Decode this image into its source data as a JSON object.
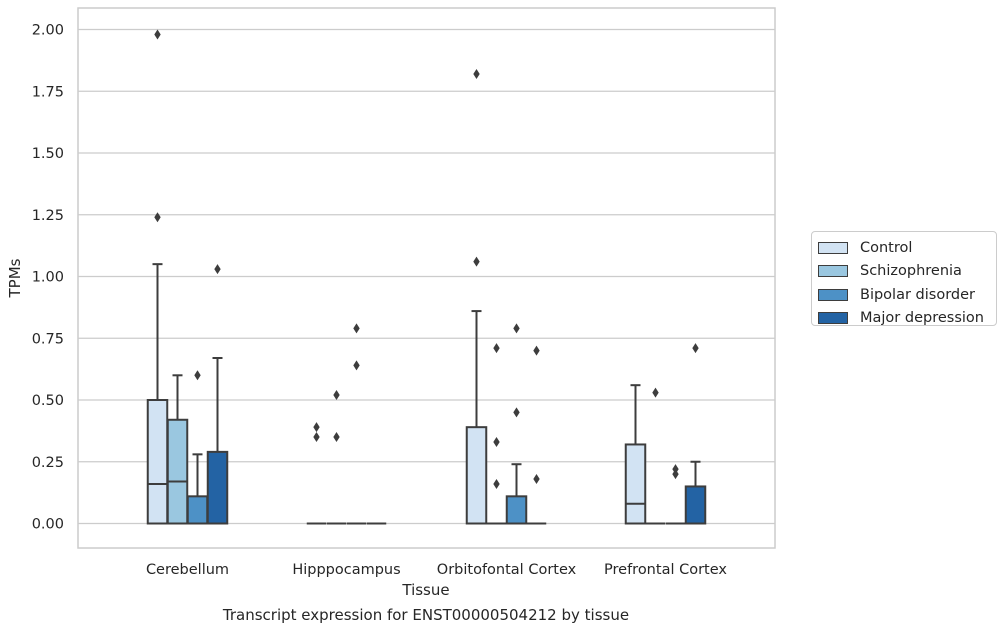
{
  "chart_data": {
    "type": "box",
    "xlabel": "Tissue",
    "ylabel": "TPMs",
    "ylim": [
      -0.1,
      2.08
    ],
    "yticks": [
      "0.00",
      "0.25",
      "0.50",
      "0.75",
      "1.00",
      "1.25",
      "1.50",
      "1.75",
      "2.00"
    ],
    "categories": [
      "Cerebellum",
      "Hipppocampus",
      "Orbitofontal Cortex",
      "Prefrontal Cortex"
    ],
    "grid": "horizontal",
    "legend_position": "right",
    "series": [
      {
        "name": "Control",
        "color": "#d2e3f3",
        "boxes": [
          {
            "q1": 0.0,
            "median": 0.16,
            "q3": 0.5,
            "whisker_low": 0.0,
            "whisker_high": 1.05,
            "outliers": [
              1.98,
              1.24
            ]
          },
          {
            "q1": 0.0,
            "median": 0.0,
            "q3": 0.0,
            "whisker_low": 0.0,
            "whisker_high": 0.0,
            "outliers": [
              0.39,
              0.35
            ]
          },
          {
            "q1": 0.0,
            "median": 0.0,
            "q3": 0.39,
            "whisker_low": 0.0,
            "whisker_high": 0.86,
            "outliers": [
              1.82,
              1.06
            ]
          },
          {
            "q1": 0.0,
            "median": 0.08,
            "q3": 0.32,
            "whisker_low": 0.0,
            "whisker_high": 0.56,
            "outliers": []
          }
        ]
      },
      {
        "name": "Schizophrenia",
        "color": "#9ac7e0",
        "boxes": [
          {
            "q1": 0.0,
            "median": 0.17,
            "q3": 0.42,
            "whisker_low": 0.0,
            "whisker_high": 0.6,
            "outliers": []
          },
          {
            "q1": 0.0,
            "median": 0.0,
            "q3": 0.0,
            "whisker_low": 0.0,
            "whisker_high": 0.0,
            "outliers": [
              0.52,
              0.35
            ]
          },
          {
            "q1": 0.0,
            "median": 0.0,
            "q3": 0.0,
            "whisker_low": 0.0,
            "whisker_high": 0.0,
            "outliers": [
              0.71,
              0.33,
              0.16
            ]
          },
          {
            "q1": 0.0,
            "median": 0.0,
            "q3": 0.0,
            "whisker_low": 0.0,
            "whisker_high": 0.0,
            "outliers": [
              0.53
            ]
          }
        ]
      },
      {
        "name": "Bipolar disorder",
        "color": "#4d91c6",
        "boxes": [
          {
            "q1": 0.0,
            "median": 0.0,
            "q3": 0.11,
            "whisker_low": 0.0,
            "whisker_high": 0.28,
            "outliers": [
              0.6
            ]
          },
          {
            "q1": 0.0,
            "median": 0.0,
            "q3": 0.0,
            "whisker_low": 0.0,
            "whisker_high": 0.0,
            "outliers": [
              0.64,
              0.79
            ]
          },
          {
            "q1": 0.0,
            "median": 0.0,
            "q3": 0.11,
            "whisker_low": 0.0,
            "whisker_high": 0.24,
            "outliers": [
              0.79,
              0.45
            ]
          },
          {
            "q1": 0.0,
            "median": 0.0,
            "q3": 0.0,
            "whisker_low": 0.0,
            "whisker_high": 0.0,
            "outliers": [
              0.22,
              0.2
            ]
          }
        ]
      },
      {
        "name": "Major depression",
        "color": "#2363a4",
        "boxes": [
          {
            "q1": 0.0,
            "median": 0.0,
            "q3": 0.29,
            "whisker_low": 0.0,
            "whisker_high": 0.67,
            "outliers": [
              1.03
            ]
          },
          {
            "q1": 0.0,
            "median": 0.0,
            "q3": 0.0,
            "whisker_low": 0.0,
            "whisker_high": 0.0,
            "outliers": []
          },
          {
            "q1": 0.0,
            "median": 0.0,
            "q3": 0.0,
            "whisker_low": 0.0,
            "whisker_high": 0.0,
            "outliers": [
              0.7,
              0.18
            ]
          },
          {
            "q1": 0.0,
            "median": 0.0,
            "q3": 0.15,
            "whisker_low": 0.0,
            "whisker_high": 0.25,
            "outliers": [
              0.71
            ]
          }
        ]
      }
    ],
    "caption": "Transcript expression for ENST00000504212 by tissue"
  }
}
